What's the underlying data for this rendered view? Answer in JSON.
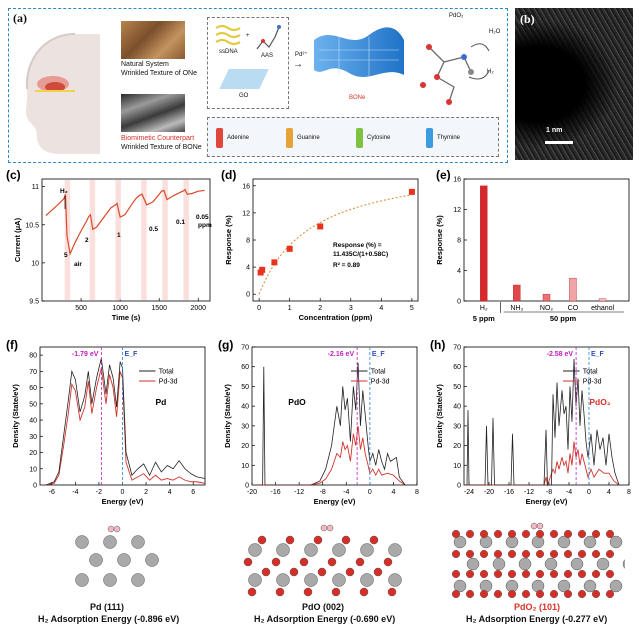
{
  "panels": {
    "a": {
      "label": "(a)",
      "natural_title": "Natural System",
      "natural_sub": "Wrinkled Texture of ONe",
      "bio_title": "Biomimetic Counterpart",
      "bio_sub": "Wrinkled Texture of BONe",
      "ssdna": "ssDNA",
      "aas": "AAS",
      "go": "GO",
      "pd": "Pd²⁺",
      "bone": "BONe",
      "pdo2": "PdO₂",
      "h2o": "H₂O",
      "h2": "H₂",
      "bases": [
        "Adenine",
        "Guanine",
        "Cytosine",
        "Thymine"
      ],
      "base_colors": [
        "#e0463b",
        "#e8a23a",
        "#7fc242",
        "#3d9be0"
      ]
    },
    "b": {
      "label": "(b)",
      "scale": "1 nm"
    },
    "c": {
      "label": "(c)",
      "ylabel": "Current (μA)",
      "xlabel": "Time (s)",
      "yticks": [
        "9.5",
        "10",
        "10.5",
        "11"
      ],
      "xticks": [
        "500",
        "1000",
        "1500",
        "2000"
      ],
      "annotations": [
        "H₂",
        "5",
        "air",
        "2",
        "1",
        "0.5",
        "0.1",
        "0.05",
        "ppm"
      ]
    },
    "d": {
      "label": "(d)",
      "ylabel": "Response (%)",
      "xlabel": "Concentration (ppm)",
      "yticks": [
        "0",
        "4",
        "8",
        "12",
        "16"
      ],
      "xticks": [
        "0",
        "1",
        "2",
        "3",
        "4",
        "5"
      ],
      "fit_eq": "Response (%) =",
      "fit_eq2": "11.435C/(1+0.58C)",
      "r2": "R² = 0.89"
    },
    "e": {
      "label": "(e)",
      "ylabel": "Response (%)",
      "yticks": [
        "0",
        "4",
        "8",
        "12",
        "16"
      ],
      "cat_labels": [
        "H₂",
        "NH₃",
        "NO₂",
        "CO",
        "ethanol"
      ],
      "group1": "5 ppm",
      "group2": "50 ppm"
    },
    "f": {
      "label": "(f)",
      "ylabel": "Density (State/eV)",
      "xlabel": "Energy (eV)",
      "center": "-1.79 eV",
      "ef": "E_F",
      "legend": [
        "Total",
        "Pd-3d"
      ],
      "material": "Pd",
      "yticks": [
        "0",
        "10",
        "20",
        "30",
        "40",
        "50",
        "60",
        "70",
        "80"
      ],
      "xticks": [
        "-6",
        "-4",
        "-2",
        "0",
        "2",
        "4",
        "6"
      ],
      "structure": "Pd (111)",
      "adsorption": "H₂ Adsorption Energy (-0.896 eV)"
    },
    "g": {
      "label": "(g)",
      "ylabel": "Density (State/eV)",
      "xlabel": "Energy (eV)",
      "center": "-2.16 eV",
      "ef": "E_F",
      "legend": [
        "Total",
        "Pd-3d"
      ],
      "material": "PdO",
      "yticks": [
        "0",
        "10",
        "20",
        "30",
        "40",
        "50",
        "60",
        "70"
      ],
      "xticks": [
        "-20",
        "-16",
        "-12",
        "-8",
        "-4",
        "0",
        "4",
        "8"
      ],
      "structure": "PdO (002)",
      "adsorption": "H₂ Adsorption Energy (-0.690 eV)"
    },
    "h": {
      "label": "(h)",
      "ylabel": "Density (State/eV)",
      "xlabel": "Energy (eV)",
      "center": "-2.58 eV",
      "ef": "E_F",
      "legend": [
        "Total",
        "Pd-3d"
      ],
      "material": "PdO₂",
      "yticks": [
        "0",
        "10",
        "20",
        "30",
        "40",
        "50",
        "60",
        "70"
      ],
      "xticks": [
        "-24",
        "-20",
        "-16",
        "-12",
        "-8",
        "-4",
        "0",
        "4",
        "8"
      ],
      "structure": "PdO₂ (101)",
      "adsorption": "H₂ Adsorption Energy (-0.277 eV)"
    }
  },
  "colors": {
    "accent_red": "#e03a2e",
    "dash_blue": "#2a7fd4",
    "magenta": "#c020c0",
    "bar_blue": "#5a5acf"
  },
  "chart_data": [
    {
      "type": "line",
      "title": "",
      "xlabel": "Time (s)",
      "ylabel": "Current (μA)",
      "xlim": [
        0,
        2150
      ],
      "ylim": [
        9.5,
        11.1
      ],
      "series": [
        {
          "x": [
            50,
            200,
            280,
            300,
            320,
            360,
            420,
            500,
            560,
            600,
            620,
            650,
            700,
            800,
            880,
            940,
            960,
            1000,
            1060,
            1150,
            1200,
            1240,
            1280,
            1340,
            1420,
            1500,
            1530,
            1560,
            1600,
            1680,
            1760,
            1800,
            1830,
            1860,
            1920,
            2000,
            2080
          ],
          "values": [
            10.62,
            10.76,
            10.84,
            10.9,
            10.35,
            10.12,
            10.26,
            10.42,
            10.53,
            10.61,
            10.63,
            10.44,
            10.47,
            10.61,
            10.72,
            10.76,
            10.78,
            10.6,
            10.63,
            10.77,
            10.84,
            10.88,
            10.9,
            10.76,
            10.8,
            10.9,
            10.94,
            10.95,
            10.83,
            10.88,
            10.92,
            10.94,
            10.96,
            10.9,
            10.91,
            10.94,
            10.95
          ]
        }
      ],
      "highlighted_intervals": [
        [
          290,
          360
        ],
        [
          610,
          680
        ],
        [
          940,
          1010
        ],
        [
          1270,
          1340
        ],
        [
          1540,
          1610
        ],
        [
          1810,
          1880
        ]
      ]
    },
    {
      "type": "scatter",
      "title": "",
      "xlabel": "Concentration (ppm)",
      "ylabel": "Response (%)",
      "xlim": [
        -0.2,
        5.2
      ],
      "ylim": [
        -1,
        17
      ],
      "x": [
        0.05,
        0.1,
        0.5,
        1.0,
        2.0,
        5.0
      ],
      "values": [
        3.2,
        3.6,
        4.7,
        6.7,
        10.0,
        15.1
      ],
      "fit": "11.435C/(1+0.58C)"
    },
    {
      "type": "bar",
      "title": "",
      "ylabel": "Response (%)",
      "ylim": [
        0,
        16
      ],
      "categories": [
        "H₂",
        "NH₃",
        "NO₂",
        "CO",
        "ethanol"
      ],
      "values": [
        15.1,
        2.1,
        0.9,
        3.0,
        0.3
      ]
    },
    {
      "type": "line",
      "title": "",
      "xlabel": "Energy (eV)",
      "ylabel": "Density (State/eV)",
      "xlim": [
        -7,
        7
      ],
      "ylim": [
        0,
        85
      ],
      "series": [
        {
          "name": "Total",
          "x": [
            -7,
            -6.5,
            -5.8,
            -5.4,
            -5.0,
            -4.6,
            -4.3,
            -4.0,
            -3.6,
            -3.2,
            -2.9,
            -2.6,
            -2.2,
            -1.8,
            -1.4,
            -1.1,
            -0.8,
            -0.5,
            -0.2,
            0,
            0.3,
            0.8,
            1.3,
            1.8,
            2.3,
            2.8,
            3.3,
            3.8,
            4.3,
            4.8,
            5.3,
            5.8,
            6.3,
            7
          ],
          "values": [
            0,
            0,
            2,
            8,
            30,
            52,
            70,
            65,
            45,
            55,
            70,
            50,
            66,
            78,
            56,
            74,
            66,
            48,
            76,
            72,
            20,
            6,
            10,
            13,
            6,
            14,
            8,
            12,
            10,
            15,
            10,
            7,
            5,
            4
          ]
        },
        {
          "name": "Pd-3d",
          "x": [
            -7,
            -6.5,
            -5.8,
            -5.4,
            -5.0,
            -4.6,
            -4.3,
            -4.0,
            -3.6,
            -3.2,
            -2.9,
            -2.6,
            -2.2,
            -1.8,
            -1.4,
            -1.1,
            -0.8,
            -0.5,
            -0.2,
            0,
            0.3,
            0.8,
            1.3,
            1.8,
            2.3,
            2.8,
            3.3,
            3.8,
            4.3,
            4.8,
            5.3,
            5.8,
            6.3,
            7
          ],
          "values": [
            0,
            0,
            1,
            6,
            24,
            44,
            62,
            58,
            40,
            48,
            64,
            44,
            60,
            72,
            50,
            68,
            60,
            42,
            70,
            66,
            14,
            3,
            5,
            7,
            3,
            6,
            3,
            4,
            3,
            5,
            3,
            2,
            2,
            1
          ]
        }
      ]
    },
    {
      "type": "line",
      "title": "",
      "xlabel": "Energy (eV)",
      "ylabel": "Density (State/eV)",
      "xlim": [
        -20,
        8
      ],
      "ylim": [
        0,
        70
      ],
      "series": [
        {
          "name": "Total",
          "x": [
            -20,
            -19,
            -18.2,
            -18,
            -17.8,
            -17,
            -10,
            -8.5,
            -7.5,
            -6.5,
            -5.6,
            -5,
            -4.6,
            -4.2,
            -3.8,
            -3.3,
            -2.8,
            -2.4,
            -2,
            -1.6,
            -1.2,
            -0.8,
            -0.3,
            0,
            0.5,
            1,
            1.5,
            2,
            2.5,
            3,
            3.5,
            4.5,
            5,
            6
          ],
          "values": [
            0,
            0,
            0,
            60,
            0,
            0,
            0,
            2,
            8,
            20,
            40,
            30,
            50,
            38,
            44,
            22,
            50,
            38,
            62,
            30,
            48,
            36,
            20,
            12,
            16,
            10,
            18,
            12,
            8,
            16,
            12,
            14,
            4,
            0
          ]
        },
        {
          "name": "Pd-3d",
          "x": [
            -20,
            -10,
            -8.5,
            -7.5,
            -6.5,
            -5.6,
            -5,
            -4.6,
            -4.2,
            -3.8,
            -3.3,
            -2.8,
            -2.4,
            -2,
            -1.6,
            -1.2,
            -0.8,
            -0.3,
            0,
            0.5,
            1,
            1.5,
            2,
            3,
            4,
            5,
            6
          ],
          "values": [
            0,
            0,
            1,
            3,
            8,
            16,
            14,
            22,
            18,
            20,
            12,
            26,
            20,
            30,
            18,
            24,
            16,
            10,
            6,
            8,
            5,
            8,
            5,
            6,
            5,
            2,
            0
          ]
        }
      ]
    },
    {
      "type": "line",
      "title": "",
      "xlabel": "Energy (eV)",
      "ylabel": "Density (State/eV)",
      "xlim": [
        -25,
        8
      ],
      "ylim": [
        0,
        70
      ],
      "series": [
        {
          "name": "Total",
          "x": [
            -25,
            -24.4,
            -24.2,
            -24,
            -20.8,
            -20.5,
            -20.2,
            -19.5,
            -19.2,
            -18.9,
            -15.6,
            -15.3,
            -15,
            -9,
            -8.6,
            -8.3,
            -7.5,
            -7.2,
            -6.8,
            -6.4,
            -6,
            -5.4,
            -5,
            -4.6,
            -4.2,
            -3.8,
            -3.4,
            -3,
            -2.6,
            -2.2,
            -1.8,
            -1.4,
            -1,
            -0.6,
            -0.2,
            0.4,
            1,
            1.6,
            2.2,
            2.8,
            3.4,
            4,
            4.6,
            5.2,
            6
          ],
          "values": [
            0,
            0,
            38,
            0,
            0,
            30,
            0,
            0,
            34,
            0,
            0,
            26,
            0,
            0,
            28,
            0,
            0,
            46,
            24,
            52,
            30,
            48,
            36,
            40,
            18,
            50,
            32,
            64,
            40,
            54,
            30,
            48,
            36,
            22,
            14,
            26,
            10,
            28,
            18,
            24,
            10,
            26,
            14,
            6,
            0
          ]
        },
        {
          "name": "Pd-3d",
          "x": [
            -25,
            -9,
            -8.6,
            -8.3,
            -7.2,
            -6.8,
            -6.4,
            -6,
            -5.4,
            -5,
            -4.6,
            -4.2,
            -3.8,
            -3.4,
            -3,
            -2.6,
            -2.2,
            -1.8,
            -1.4,
            -1,
            -0.6,
            -0.2,
            0.4,
            1,
            2,
            3,
            4,
            5,
            6
          ],
          "values": [
            0,
            0,
            4,
            0,
            8,
            6,
            12,
            8,
            14,
            10,
            12,
            6,
            16,
            10,
            22,
            14,
            18,
            10,
            16,
            12,
            8,
            4,
            8,
            4,
            8,
            6,
            6,
            2,
            0
          ]
        }
      ]
    }
  ]
}
